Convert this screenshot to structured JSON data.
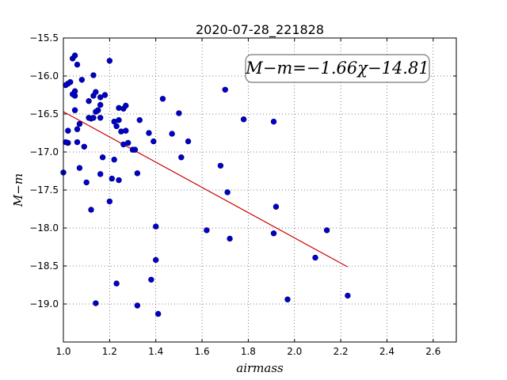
{
  "chart_data": {
    "type": "scatter",
    "title": "2020-07-28_221828",
    "xlabel": "airmass",
    "ylabel": "M−m",
    "xlim": [
      1.0,
      2.7
    ],
    "ylim": [
      -19.5,
      -15.5
    ],
    "y_inverted": true,
    "grid": true,
    "x_ticks": [
      "1.0",
      "1.2",
      "1.4",
      "1.6",
      "1.8",
      "2.0",
      "2.2",
      "2.4",
      "2.6"
    ],
    "y_ticks": [
      "−15.5",
      "−16.0",
      "−16.5",
      "−17.0",
      "−17.5",
      "−18.0",
      "−18.5",
      "−19.0"
    ],
    "point_color": "#0000cc",
    "line_color": "#cc0000",
    "annotation": "M−m=−1.66χ−14.81",
    "fit": {
      "slope": -1.66,
      "intercept": -14.81,
      "x_range": [
        1.0,
        2.23
      ]
    },
    "points": [
      [
        1.04,
        -15.77
      ],
      [
        1.05,
        -15.73
      ],
      [
        1.06,
        -15.85
      ],
      [
        1.02,
        -16.1
      ],
      [
        1.01,
        -16.12
      ],
      [
        1.03,
        -16.08
      ],
      [
        1.08,
        -16.05
      ],
      [
        1.05,
        -16.2
      ],
      [
        1.05,
        -16.26
      ],
      [
        1.04,
        -16.24
      ],
      [
        1.05,
        -16.45
      ],
      [
        1.06,
        -16.7
      ],
      [
        1.07,
        -16.63
      ],
      [
        1.02,
        -16.88
      ],
      [
        1.01,
        -16.87
      ],
      [
        1.02,
        -16.72
      ],
      [
        1.06,
        -16.87
      ],
      [
        1.09,
        -16.93
      ],
      [
        1.0,
        -17.27
      ],
      [
        1.07,
        -17.21
      ],
      [
        1.1,
        -17.4
      ],
      [
        1.13,
        -15.99
      ],
      [
        1.2,
        -15.8
      ],
      [
        1.11,
        -16.33
      ],
      [
        1.13,
        -16.26
      ],
      [
        1.14,
        -16.21
      ],
      [
        1.16,
        -16.28
      ],
      [
        1.18,
        -16.25
      ],
      [
        1.16,
        -16.38
      ],
      [
        1.15,
        -16.45
      ],
      [
        1.14,
        -16.47
      ],
      [
        1.11,
        -16.55
      ],
      [
        1.12,
        -16.56
      ],
      [
        1.13,
        -16.55
      ],
      [
        1.16,
        -16.55
      ],
      [
        1.22,
        -16.6
      ],
      [
        1.23,
        -16.66
      ],
      [
        1.24,
        -16.58
      ],
      [
        1.24,
        -16.42
      ],
      [
        1.26,
        -16.43
      ],
      [
        1.27,
        -16.39
      ],
      [
        1.25,
        -16.73
      ],
      [
        1.27,
        -16.72
      ],
      [
        1.26,
        -16.9
      ],
      [
        1.28,
        -16.88
      ],
      [
        1.3,
        -16.97
      ],
      [
        1.31,
        -16.97
      ],
      [
        1.17,
        -17.07
      ],
      [
        1.22,
        -17.1
      ],
      [
        1.21,
        -17.35
      ],
      [
        1.24,
        -17.37
      ],
      [
        1.16,
        -17.29
      ],
      [
        1.32,
        -17.28
      ],
      [
        1.2,
        -17.65
      ],
      [
        1.12,
        -17.76
      ],
      [
        1.33,
        -16.58
      ],
      [
        1.37,
        -16.75
      ],
      [
        1.39,
        -16.86
      ],
      [
        1.43,
        -16.3
      ],
      [
        1.5,
        -16.49
      ],
      [
        1.47,
        -16.76
      ],
      [
        1.51,
        -17.07
      ],
      [
        1.54,
        -16.86
      ],
      [
        1.7,
        -16.18
      ],
      [
        1.68,
        -17.18
      ],
      [
        1.71,
        -17.53
      ],
      [
        1.62,
        -18.03
      ],
      [
        1.72,
        -18.14
      ],
      [
        1.78,
        -16.57
      ],
      [
        1.91,
        -16.6
      ],
      [
        1.92,
        -17.72
      ],
      [
        1.91,
        -18.07
      ],
      [
        2.14,
        -18.03
      ],
      [
        2.09,
        -18.39
      ],
      [
        1.97,
        -18.94
      ],
      [
        2.23,
        -18.89
      ],
      [
        1.4,
        -17.98
      ],
      [
        1.4,
        -18.42
      ],
      [
        1.38,
        -18.68
      ],
      [
        1.23,
        -18.73
      ],
      [
        1.14,
        -18.99
      ],
      [
        1.32,
        -19.02
      ],
      [
        1.41,
        -19.13
      ]
    ]
  }
}
